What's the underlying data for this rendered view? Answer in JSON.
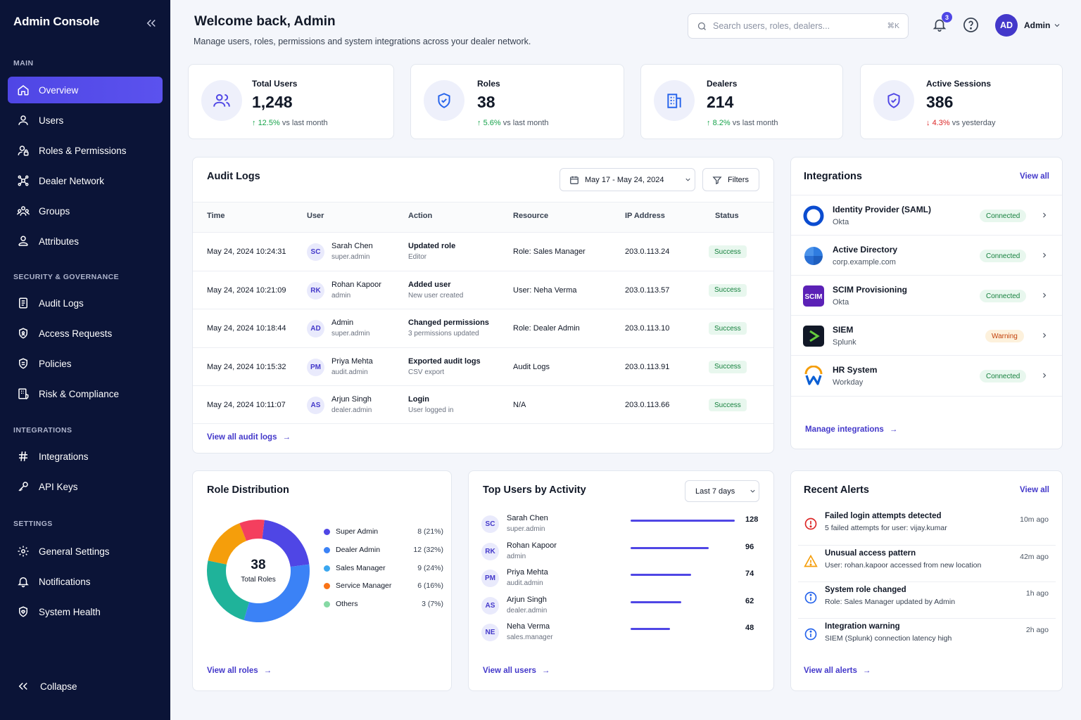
{
  "sidebar": {
    "brand": "Admin Console",
    "sections": {
      "main": "MAIN",
      "security": "SECURITY & GOVERNANCE",
      "integrations": "INTEGRATIONS",
      "settings": "SETTINGS"
    },
    "items": [
      {
        "label": "Overview",
        "icon": "home-icon",
        "active": true
      },
      {
        "label": "Users",
        "icon": "user-icon"
      },
      {
        "label": "Roles & Permissions",
        "icon": "user-lock-icon"
      },
      {
        "label": "Dealer Network",
        "icon": "network-icon"
      },
      {
        "label": "Groups",
        "icon": "groups-icon"
      },
      {
        "label": "Attributes",
        "icon": "attributes-icon"
      },
      {
        "label": "Audit Logs",
        "icon": "document-icon"
      },
      {
        "label": "Access Requests",
        "icon": "access-icon"
      },
      {
        "label": "Policies",
        "icon": "policy-icon"
      },
      {
        "label": "Risk & Compliance",
        "icon": "building-shield-icon"
      },
      {
        "label": "Integrations",
        "icon": "hash-icon"
      },
      {
        "label": "API Keys",
        "icon": "key-icon"
      },
      {
        "label": "General Settings",
        "icon": "gear-icon"
      },
      {
        "label": "Notifications",
        "icon": "bell-icon"
      },
      {
        "label": "System Health",
        "icon": "shield-heart-icon"
      }
    ],
    "collapse_label": "Collapse"
  },
  "header": {
    "title": "Welcome back, Admin",
    "subtitle": "Manage users, roles, permissions and system integrations across your dealer network.",
    "search_placeholder": "Search users, roles, dealers...",
    "search_shortcut": "⌘K",
    "notification_count": "3",
    "user_initials": "AD",
    "user_name": "Admin"
  },
  "stats": [
    {
      "label": "Total Users",
      "value": "1,248",
      "delta": "12.5%",
      "delta_text": "vs last month",
      "direction": "up",
      "icon": "users-icon"
    },
    {
      "label": "Roles",
      "value": "38",
      "delta": "5.6%",
      "delta_text": "vs last month",
      "direction": "up",
      "icon": "shield-check-icon"
    },
    {
      "label": "Dealers",
      "value": "214",
      "delta": "8.2%",
      "delta_text": "vs last month",
      "direction": "up",
      "icon": "building-icon"
    },
    {
      "label": "Active Sessions",
      "value": "386",
      "delta": "4.3%",
      "delta_text": "vs yesterday",
      "direction": "down",
      "icon": "shield-check-icon"
    }
  ],
  "audit": {
    "title": "Audit Logs",
    "date_range": "May 17 - May 24, 2024",
    "filters_label": "Filters",
    "columns": [
      "Time",
      "User",
      "Action",
      "Resource",
      "IP Address",
      "Status"
    ],
    "rows": [
      {
        "time": "May 24, 2024 10:24:31",
        "initials": "SC",
        "user": "Sarah Chen",
        "user_role": "super.admin",
        "action": "Updated role",
        "action_sub": "Editor",
        "resource": "Role: Sales Manager",
        "ip": "203.0.113.24",
        "status": "Success"
      },
      {
        "time": "May 24, 2024 10:21:09",
        "initials": "RK",
        "user": "Rohan Kapoor",
        "user_role": "admin",
        "action": "Added user",
        "action_sub": "New user created",
        "resource": "User: Neha Verma",
        "ip": "203.0.113.57",
        "status": "Success"
      },
      {
        "time": "May 24, 2024 10:18:44",
        "initials": "AD",
        "user": "Admin",
        "user_role": "super.admin",
        "action": "Changed permissions",
        "action_sub": "3 permissions updated",
        "resource": "Role: Dealer Admin",
        "ip": "203.0.113.10",
        "status": "Success"
      },
      {
        "time": "May 24, 2024 10:15:32",
        "initials": "PM",
        "user": "Priya Mehta",
        "user_role": "audit.admin",
        "action": "Exported audit logs",
        "action_sub": "CSV export",
        "resource": "Audit Logs",
        "ip": "203.0.113.91",
        "status": "Success"
      },
      {
        "time": "May 24, 2024 10:11:07",
        "initials": "AS",
        "user": "Arjun Singh",
        "user_role": "dealer.admin",
        "action": "Login",
        "action_sub": "User logged in",
        "resource": "N/A",
        "ip": "203.0.113.66",
        "status": "Success"
      }
    ],
    "view_all": "View all audit logs"
  },
  "integrations": {
    "title": "Integrations",
    "view_all": "View all",
    "items": [
      {
        "name": "Identity Provider (SAML)",
        "provider": "Okta",
        "status": "Connected",
        "icon": "okta-logo-icon"
      },
      {
        "name": "Active Directory",
        "provider": "corp.example.com",
        "status": "Connected",
        "icon": "windows-logo-icon"
      },
      {
        "name": "SCIM Provisioning",
        "provider": "Okta",
        "status": "Connected",
        "icon": "scim-logo-icon"
      },
      {
        "name": "SIEM",
        "provider": "Splunk",
        "status": "Warning",
        "icon": "splunk-logo-icon"
      },
      {
        "name": "HR System",
        "provider": "Workday",
        "status": "Connected",
        "icon": "workday-logo-icon"
      }
    ],
    "manage": "Manage integrations",
    "colors": {
      "connected_bg": "#e8f7ee",
      "connected_fg": "#15803d",
      "warning_bg": "#fdf1dc",
      "warning_fg": "#c2410c"
    }
  },
  "role_distribution": {
    "title": "Role Distribution",
    "center_value": "38",
    "center_label": "Total Roles",
    "view_all": "View all roles"
  },
  "chart_data": {
    "type": "pie",
    "series": [
      {
        "name": "Super Admin",
        "value": 8,
        "value_label": "8 (21%)",
        "color": "#4f46e5"
      },
      {
        "name": "Dealer Admin",
        "value": 12,
        "value_label": "12 (32%)",
        "color": "#3b82f6"
      },
      {
        "name": "Sales Manager",
        "value": 9,
        "value_label": "9 (24%)",
        "color": "#1fb39a"
      },
      {
        "name": "Service Manager",
        "value": 6,
        "value_label": "6 (16%)",
        "color": "#f59e0b"
      },
      {
        "name": "Others",
        "value": 3,
        "value_label": "3 (7%)",
        "color": "#f43f5e"
      }
    ]
  },
  "legend_order": [
    {
      "name": "Super Admin",
      "value_label": "8 (21%)",
      "color": "#4f46e5"
    },
    {
      "name": "Dealer Admin",
      "value_label": "12 (32%)",
      "color": "#3b82f6"
    },
    {
      "name": "Sales Manager",
      "value_label": "9 (24%)",
      "color": "#3ba7f0"
    },
    {
      "name": "Service Manager",
      "value_label": "6 (16%)",
      "color": "#f97316"
    },
    {
      "name": "Others",
      "value_label": "3 (7%)",
      "color": "#86d9a4"
    }
  ],
  "top_users": {
    "title": "Top Users by Activity",
    "period": "Last 7 days",
    "max": 128,
    "users": [
      {
        "initials": "SC",
        "name": "Sarah Chen",
        "role": "super.admin",
        "value": 128
      },
      {
        "initials": "RK",
        "name": "Rohan Kapoor",
        "role": "admin",
        "value": 96
      },
      {
        "initials": "PM",
        "name": "Priya Mehta",
        "role": "audit.admin",
        "value": 74
      },
      {
        "initials": "AS",
        "name": "Arjun Singh",
        "role": "dealer.admin",
        "value": 62
      },
      {
        "initials": "NE",
        "name": "Neha Verma",
        "role": "sales.manager",
        "value": 48
      }
    ],
    "view_all": "View all users"
  },
  "alerts": {
    "title": "Recent Alerts",
    "view_all": "View all",
    "items": [
      {
        "title": "Failed login attempts detected",
        "desc": "5 failed attempts for user: vijay.kumar",
        "time": "10m ago",
        "icon": "error-icon",
        "color": "#dc2626"
      },
      {
        "title": "Unusual access pattern",
        "desc": "User: rohan.kapoor accessed from new location",
        "time": "42m ago",
        "icon": "warning-icon",
        "color": "#f59e0b"
      },
      {
        "title": "System role changed",
        "desc": "Role: Sales Manager updated by Admin",
        "time": "1h ago",
        "icon": "info-icon",
        "color": "#2563eb"
      },
      {
        "title": "Integration warning",
        "desc": "SIEM (Splunk) connection latency high",
        "time": "2h ago",
        "icon": "info-icon",
        "color": "#2563eb"
      }
    ],
    "view_all_bottom": "View all alerts"
  }
}
